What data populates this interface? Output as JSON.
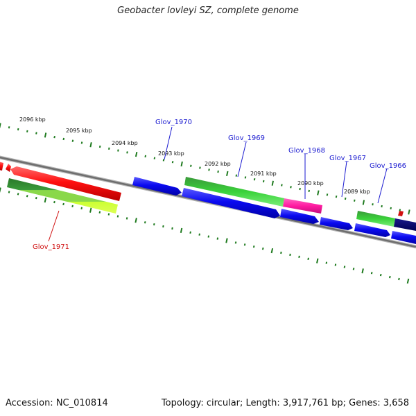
{
  "title": "Geobacter lovleyi SZ, complete genome",
  "footer": {
    "accession": "Accession: NC_010814",
    "summary": "Topology: circular; Length: 3,917,761 bp; Genes: 3,658"
  },
  "colors": {
    "backbone": "#7a7a7a",
    "tick": "#1e7a1e",
    "label_forward": "#1a1ad0",
    "label_reverse": "#d01010"
  },
  "kbp_labels": [
    "2096 kbp",
    "2095 kbp",
    "2094 kbp",
    "2093 kbp",
    "2092 kbp",
    "2091 kbp",
    "2090 kbp",
    "2089 kbp"
  ],
  "gene_labels": [
    "Glov_1971",
    "Glov_1970",
    "Glov_1969",
    "Glov_1968",
    "Glov_1967",
    "Glov_1966"
  ]
}
